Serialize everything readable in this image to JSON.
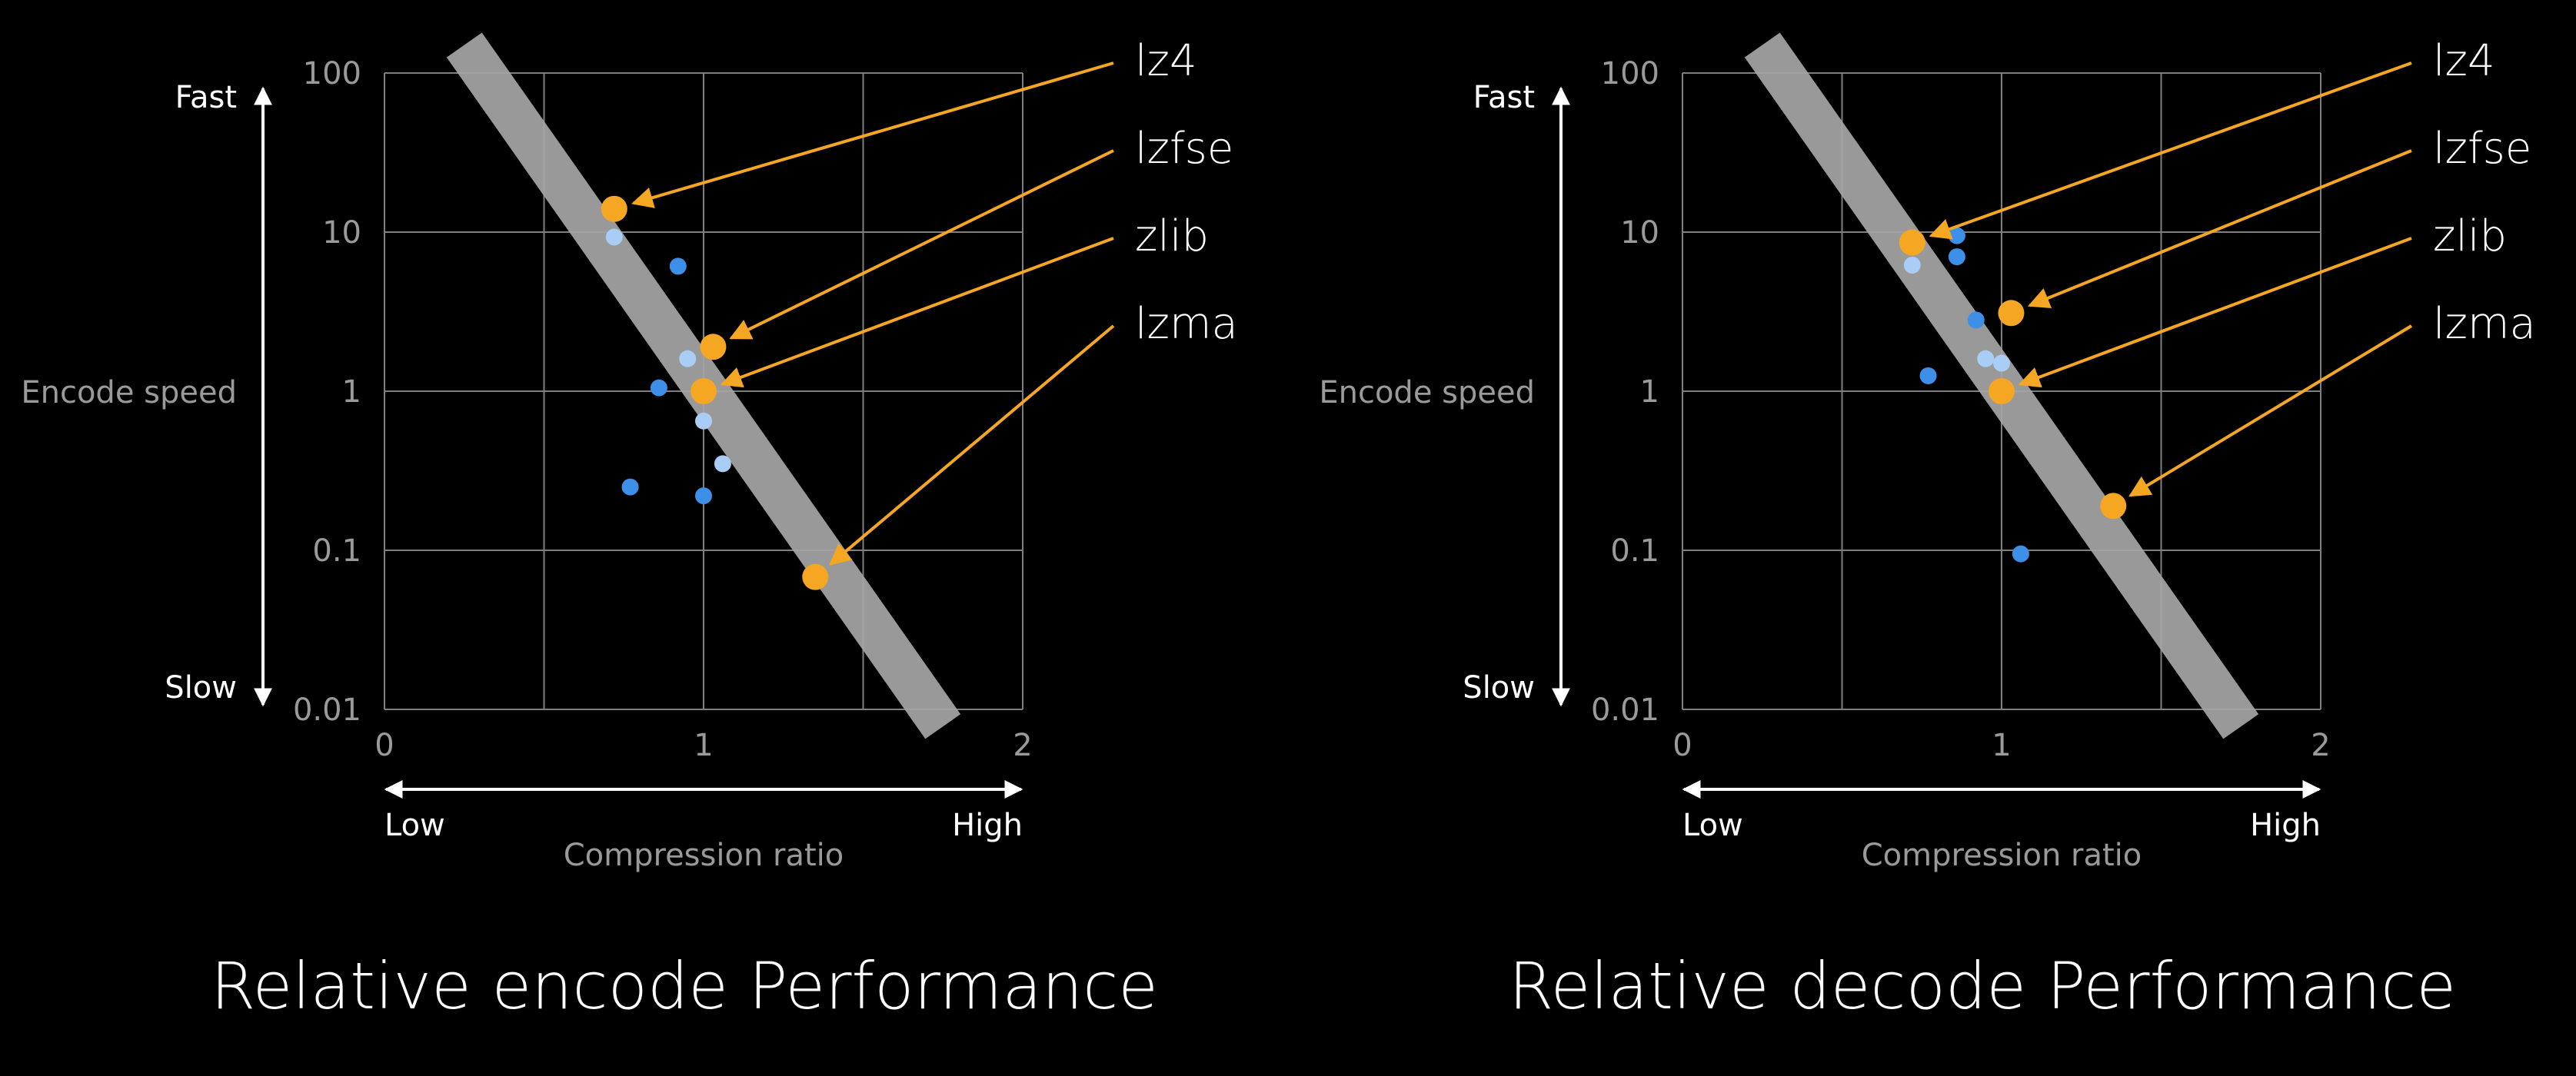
{
  "colors": {
    "background": "#000000",
    "grid": "#7f7f7f",
    "band": "#a6a6a6",
    "highlight": "#f5a623",
    "dark_blue": "#3d8fe8",
    "light_blue": "#a9cdf5",
    "text": "#ffffff",
    "muted_text": "#9a9a9a"
  },
  "chart_data": [
    {
      "type": "scatter",
      "title": "Relative encode Performance",
      "xlabel": "Compression ratio",
      "ylabel": "Encode speed",
      "x_low": "Low",
      "x_high": "High",
      "y_high": "Fast",
      "y_low": "Slow",
      "xlim": [
        0,
        2
      ],
      "ylim": [
        0.01,
        100
      ],
      "y_scale": "log",
      "x_ticks": [
        "0",
        "1",
        "2"
      ],
      "y_ticks": [
        "100",
        "10",
        "1",
        "0.1",
        "0.01"
      ],
      "grid": true,
      "trend_band": {
        "from": [
          0.25,
          150
        ],
        "to": [
          1.75,
          0.0078
        ]
      },
      "highlighted": [
        {
          "name": "lz4",
          "x": 0.72,
          "y": 14
        },
        {
          "name": "lzfse",
          "x": 1.03,
          "y": 1.9
        },
        {
          "name": "zlib",
          "x": 1.0,
          "y": 1.0
        },
        {
          "name": "lzma",
          "x": 1.35,
          "y": 0.068
        }
      ],
      "others_dark": [
        {
          "x": 0.92,
          "y": 6.1
        },
        {
          "x": 0.86,
          "y": 1.05
        },
        {
          "x": 0.77,
          "y": 0.25
        },
        {
          "x": 1.0,
          "y": 0.22
        }
      ],
      "others_light": [
        {
          "x": 0.72,
          "y": 9.3
        },
        {
          "x": 0.95,
          "y": 1.6
        },
        {
          "x": 1.0,
          "y": 0.65
        },
        {
          "x": 1.06,
          "y": 0.35
        }
      ]
    },
    {
      "type": "scatter",
      "title": "Relative decode Performance",
      "xlabel": "Compression ratio",
      "ylabel": "Encode speed",
      "x_low": "Low",
      "x_high": "High",
      "y_high": "Fast",
      "y_low": "Slow",
      "xlim": [
        0,
        2
      ],
      "ylim": [
        0.01,
        100
      ],
      "y_scale": "log",
      "x_ticks": [
        "0",
        "1",
        "2"
      ],
      "y_ticks": [
        "100",
        "10",
        "1",
        "0.1",
        "0.01"
      ],
      "grid": true,
      "trend_band": {
        "from": [
          0.25,
          150
        ],
        "to": [
          1.75,
          0.0078
        ]
      },
      "highlighted": [
        {
          "name": "lz4",
          "x": 0.72,
          "y": 8.6
        },
        {
          "name": "lzfse",
          "x": 1.03,
          "y": 3.1
        },
        {
          "name": "zlib",
          "x": 1.0,
          "y": 1.0
        },
        {
          "name": "lzma",
          "x": 1.35,
          "y": 0.19
        }
      ],
      "others_dark": [
        {
          "x": 0.86,
          "y": 9.5
        },
        {
          "x": 0.86,
          "y": 7.0
        },
        {
          "x": 0.92,
          "y": 2.8
        },
        {
          "x": 0.77,
          "y": 1.25
        },
        {
          "x": 1.06,
          "y": 0.095
        }
      ],
      "others_light": [
        {
          "x": 0.72,
          "y": 6.2
        },
        {
          "x": 0.95,
          "y": 1.6
        },
        {
          "x": 1.0,
          "y": 1.5
        }
      ]
    }
  ]
}
